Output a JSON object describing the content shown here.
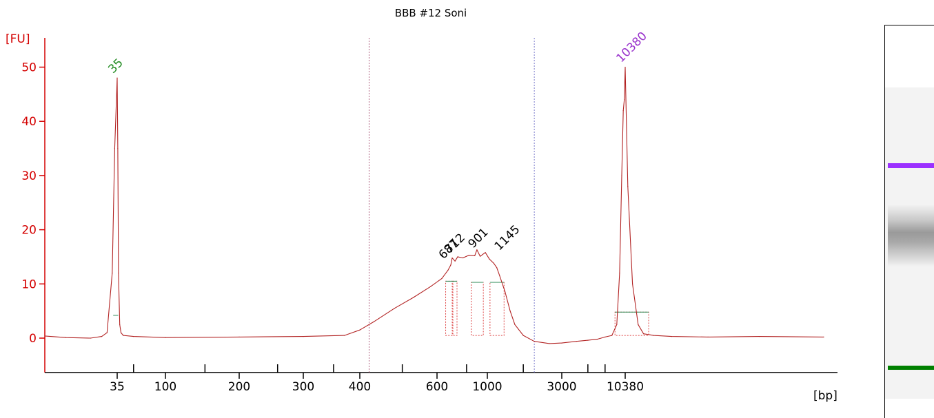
{
  "chart_data": {
    "type": "line",
    "title": "BBB #12 Soni",
    "ylabel": "[FU]",
    "xlabel": "[bp]",
    "ylim": [
      -6,
      55
    ],
    "yticks": [
      0,
      10,
      20,
      30,
      40,
      50
    ],
    "xticks": [
      "35",
      "100",
      "200",
      "300",
      "400",
      "600",
      "1000",
      "3000",
      "10380"
    ],
    "series": [
      {
        "x": [
          23,
          26,
          30,
          32,
          33,
          34,
          34.5,
          35,
          35.5,
          36,
          37,
          38,
          40,
          50,
          100,
          200,
          300,
          370,
          400,
          430,
          480,
          530,
          580,
          630,
          670,
          690,
          700,
          720,
          740,
          780,
          830,
          880,
          900,
          930,
          980,
          1030,
          1100,
          1150,
          1200,
          1300,
          1400,
          1500,
          1700,
          2000,
          2500,
          3000,
          4000,
          5000,
          6000,
          7000,
          8000,
          8800,
          9300,
          9700,
          10000,
          10200,
          10380,
          10600,
          11000,
          11500,
          12000,
          13000,
          15000,
          20000,
          30000,
          50000
        ],
        "values": [
          0.4,
          0.1,
          0,
          0.3,
          1.0,
          12.0,
          35.0,
          48.0,
          35.0,
          12.0,
          2.5,
          1.0,
          0.5,
          0.3,
          0.1,
          0.2,
          0.3,
          0.5,
          1.5,
          3.0,
          5.5,
          7.5,
          9.5,
          11.0,
          12.5,
          13.5,
          14.8,
          14.2,
          15.0,
          14.8,
          15.3,
          15.2,
          16.3,
          15.1,
          15.8,
          14.6,
          13.8,
          13.0,
          11.5,
          8.5,
          5.0,
          2.5,
          0.5,
          -0.6,
          -1.0,
          -0.9,
          -0.6,
          -0.4,
          -0.2,
          0.2,
          0.5,
          2.5,
          12.0,
          30.0,
          42.0,
          44.0,
          50.0,
          28.0,
          10.0,
          2.5,
          0.8,
          0.5,
          0.3,
          0.2,
          0.3,
          0.2
        ],
        "color": "#b22222"
      }
    ],
    "peaks": [
      {
        "label": "35",
        "x": 35,
        "y": 48.0,
        "color": "#228b22"
      },
      {
        "label": "687",
        "x": 687,
        "y": 14.0,
        "color": "#000000"
      },
      {
        "label": "712",
        "x": 712,
        "y": 14.5,
        "color": "#000000"
      },
      {
        "label": "901",
        "x": 901,
        "y": 16.0,
        "color": "#000000"
      },
      {
        "label": "1145",
        "x": 1145,
        "y": 14.8,
        "color": "#000000"
      },
      {
        "label": "10380",
        "x": 10380,
        "y": 50.0,
        "color": "#9932cc"
      }
    ],
    "region_markers_bp": [
      420,
      2000
    ],
    "grid": false,
    "legend": "none"
  },
  "gel": {
    "marker_colors": {
      "upper": "#9b30ff",
      "lower": "#008000"
    }
  }
}
